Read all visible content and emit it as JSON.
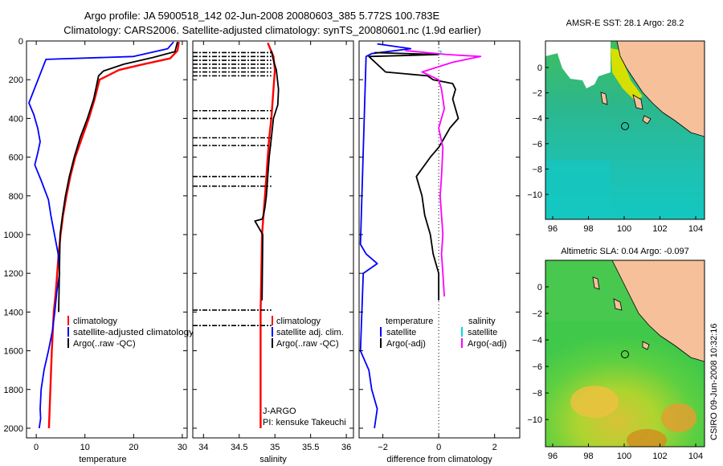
{
  "title_line1": "Argo profile: JA 5900518_142 02-Jun-2008 20080603_385 5.772S 100.783E",
  "title_line2": "Climatology: CARS2006. Satellite-adjusted climatology: synTS_20080601.nc (1.9d earlier)",
  "credit": "CSIRO 09-Jun-2008 10:32:16",
  "colors": {
    "climatology": "#ff0000",
    "satellite": "#0000ff",
    "argo": "#000000",
    "salinity_argo": "#ff00ff",
    "salinity_satellite": "#00dddd",
    "land": "#f5c09a"
  },
  "chart_data": [
    {
      "type": "line",
      "panel": "temperature",
      "xlabel": "temperature",
      "ylabel": "",
      "xlim": [
        -2,
        31
      ],
      "ylim": [
        2050,
        0
      ],
      "xticks": [
        0,
        10,
        20,
        30
      ],
      "yticks": [
        0,
        200,
        400,
        600,
        800,
        1000,
        1200,
        1400,
        1600,
        1800,
        2000
      ],
      "legend": [
        "climatology",
        "satellite-adjusted climatology",
        "Argo(..raw -QC)"
      ],
      "series": [
        {
          "name": "climatology",
          "color": "red",
          "x": [
            29.3,
            29.0,
            27.5,
            22,
            17,
            13.0,
            12.0,
            10.8,
            9.4,
            8.0,
            7.0,
            6.2,
            5.5,
            5.0,
            4.6,
            4.3,
            4.0,
            3.6,
            3.2,
            2.9,
            2.6
          ],
          "y": [
            5,
            50,
            90,
            120,
            150,
            200,
            300,
            400,
            500,
            600,
            700,
            800,
            900,
            1000,
            1100,
            1200,
            1300,
            1400,
            1600,
            1800,
            2000
          ]
        },
        {
          "name": "satellite-adjusted climatology",
          "color": "blue",
          "x": [
            28.2,
            27,
            20,
            2,
            -1.5,
            -0.5,
            0.3,
            0.8,
            0.3,
            -0.3,
            1.0,
            2.5,
            3.0,
            4.5,
            4.8,
            4.2,
            3.8,
            3.3,
            2.5,
            1.6,
            1.0,
            0.8,
            0.9,
            0.6
          ],
          "y": [
            5,
            40,
            80,
            95,
            320,
            380,
            450,
            520,
            580,
            640,
            720,
            820,
            900,
            1100,
            1200,
            1300,
            1400,
            1500,
            1600,
            1700,
            1800,
            1900,
            1950,
            2000
          ]
        },
        {
          "name": "Argo(..raw -QC)",
          "color": "black",
          "x": [
            29.0,
            28.5,
            24,
            18,
            13.8,
            12.8,
            11.8,
            10.5,
            9.0,
            7.8,
            6.8,
            6.0,
            5.4,
            4.9,
            4.6
          ],
          "y": [
            5,
            55,
            85,
            120,
            155,
            180,
            300,
            400,
            500,
            600,
            700,
            800,
            900,
            1000,
            1400
          ]
        }
      ]
    },
    {
      "type": "line",
      "panel": "salinity",
      "xlabel": "salinity",
      "ylabel": "",
      "xlim": [
        33.85,
        36.1
      ],
      "ylim": [
        2050,
        0
      ],
      "xticks": [
        34,
        34.5,
        35,
        35.5,
        36
      ],
      "legend": [
        "climatology",
        "satellite adj. clim.",
        "Argo(..raw -QC)"
      ],
      "annotations": [
        "J-ARGO",
        "PI: kensuke Takeuchi"
      ],
      "series": [
        {
          "name": "climatology",
          "color": "red",
          "x": [
            34.9,
            34.98,
            35.0,
            34.98,
            34.95,
            34.92,
            34.9,
            34.88,
            34.86,
            34.84,
            34.82,
            34.8,
            34.8
          ],
          "y": [
            10,
            80,
            150,
            250,
            400,
            500,
            600,
            700,
            800,
            900,
            1000,
            1400,
            2000
          ]
        },
        {
          "name": "Argo(..raw -QC)",
          "color": "black",
          "x": [
            34.95,
            34.98,
            35.02,
            35.05,
            35.04,
            34.98,
            34.95,
            34.92,
            34.9,
            34.88,
            34.86,
            34.84,
            34.82,
            34.72,
            34.83,
            34.82
          ],
          "y": [
            50,
            100,
            150,
            250,
            330,
            400,
            500,
            600,
            700,
            800,
            860,
            900,
            920,
            930,
            1000,
            1340
          ]
        }
      ],
      "dropout_depths": [
        60,
        80,
        100,
        120,
        140,
        160,
        180,
        360,
        400,
        500,
        540,
        700,
        750,
        1390,
        1470
      ]
    },
    {
      "type": "line",
      "panel": "difference",
      "xlabel": "difference from climatology",
      "ylabel": "",
      "xlim": [
        -2.85,
        2.9
      ],
      "ylim": [
        2050,
        0
      ],
      "xticks": [
        -2,
        0,
        2
      ],
      "legend_left_title": "temperature",
      "legend_right_title": "salinity",
      "legend_left": [
        "satellite",
        "Argo(-adj)"
      ],
      "legend_right": [
        "satellite",
        "Argo(-adj)"
      ],
      "series": [
        {
          "name": "temperature satellite",
          "color": "blue",
          "x": [
            -2.2,
            -1.0,
            -2.4,
            -2.6,
            -2.8,
            -2.6,
            -2.2,
            -2.7,
            -2.8,
            -2.5,
            -2.4,
            -2.2,
            -2.3
          ],
          "y": [
            15,
            40,
            65,
            80,
            1050,
            1100,
            1150,
            1200,
            1600,
            1700,
            1800,
            1900,
            2000
          ]
        },
        {
          "name": "temperature Argo(-adj)",
          "color": "black",
          "x": [
            -2.3,
            0.0,
            -2.5,
            -1.9,
            -0.4,
            -0.2,
            0.5,
            0.6,
            0.5,
            0.7,
            0.4,
            0.2,
            0.0,
            -0.3,
            -0.8,
            -0.6,
            -0.5,
            -0.3,
            -0.2,
            0.0,
            0.0
          ],
          "y": [
            60,
            70,
            80,
            160,
            180,
            200,
            220,
            250,
            300,
            400,
            450,
            500,
            550,
            600,
            700,
            800,
            900,
            1000,
            1100,
            1200,
            1340
          ]
        },
        {
          "name": "salinity satellite",
          "color": "cyan",
          "x": [
            0.05,
            0.1
          ],
          "y": [
            50,
            60
          ]
        },
        {
          "name": "salinity Argo(-adj)",
          "color": "magenta",
          "x": [
            -1.2,
            0.3,
            1.5,
            0.5,
            -0.6,
            0.0,
            0.1,
            0.2,
            0.0,
            0.15,
            0.1,
            0.05,
            0.1,
            0.15,
            0.1,
            0.15,
            0.2
          ],
          "y": [
            50,
            70,
            80,
            110,
            160,
            200,
            250,
            350,
            450,
            550,
            700,
            800,
            900,
            1000,
            1100,
            1200,
            1320
          ]
        }
      ]
    }
  ],
  "maps": [
    {
      "title": "AMSR-E SST: 28.1 Argo: 28.2",
      "xticks": [
        "96",
        "98",
        "100",
        "102",
        "104"
      ],
      "yticks": [
        "0",
        "-2",
        "-4",
        "-6",
        "-8",
        "-10"
      ]
    },
    {
      "title": "Altimetric SLA: 0.04 Argo: -0.097",
      "xticks": [
        "96",
        "98",
        "100",
        "102",
        "104"
      ],
      "yticks": [
        "0",
        "-2",
        "-4",
        "-6",
        "-8",
        "-10"
      ]
    }
  ]
}
